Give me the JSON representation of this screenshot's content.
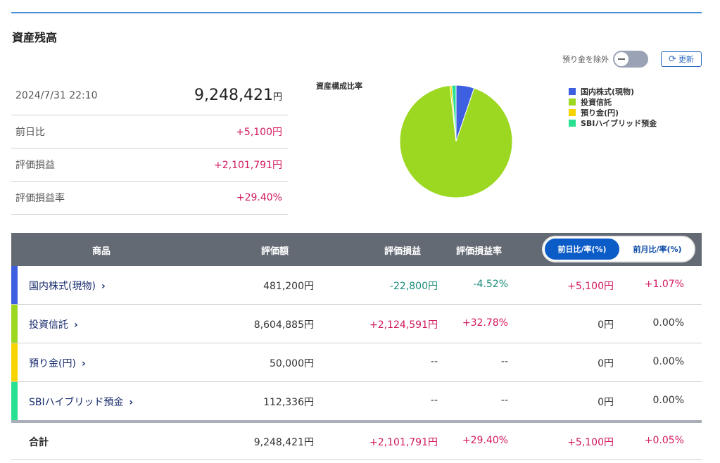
{
  "section_title": "資産残高",
  "controls": {
    "exclude_deposit_label": "預り金を除外",
    "refresh_label": "更新"
  },
  "summary": {
    "datetime": "2024/7/31 22:10",
    "total_amount": "9,248,421",
    "total_unit": "円",
    "rows": [
      {
        "label": "前日比",
        "value": "+5,100円"
      },
      {
        "label": "評価損益",
        "value": "+2,101,791円"
      },
      {
        "label": "評価損益率",
        "value": "+29.40%"
      }
    ]
  },
  "chart_data": {
    "type": "pie",
    "title": "資産構成比率",
    "categories": [
      "国内株式(現物)",
      "投資信託",
      "預り金(円)",
      "SBIハイブリッド預金"
    ],
    "values": [
      481200,
      8604885,
      50000,
      112336
    ],
    "colors": [
      "#3e5fe0",
      "#9cd722",
      "#f7d400",
      "#28e08f"
    ],
    "legend_position": "right"
  },
  "table": {
    "headers": {
      "product": "商品",
      "amount": "評価額",
      "pl": "評価損益",
      "pl_rate": "評価損益率"
    },
    "period_tabs": {
      "day": "前日比/率(%)",
      "month": "前月比/率(%)"
    },
    "rows": [
      {
        "name": "国内株式(現物)",
        "color": "#3e5fe0",
        "amount": "481,200円",
        "pl": "-22,800円",
        "pl_rate": "-4.52%",
        "day": "+5,100円",
        "month": "+1.07%"
      },
      {
        "name": "投資信託",
        "color": "#9cd722",
        "amount": "8,604,885円",
        "pl": "+2,124,591円",
        "pl_rate": "+32.78%",
        "day": "0円",
        "month": "0.00%"
      },
      {
        "name": "預り金(円)",
        "color": "#f7d400",
        "amount": "50,000円",
        "pl": "--",
        "pl_rate": "--",
        "day": "0円",
        "month": "0.00%"
      },
      {
        "name": "SBIハイブリッド預金",
        "color": "#28e08f",
        "amount": "112,336円",
        "pl": "--",
        "pl_rate": "--",
        "day": "0円",
        "month": "0.00%"
      }
    ],
    "total": {
      "label": "合計",
      "amount": "9,248,421円",
      "pl": "+2,101,791円",
      "pl_rate": "+29.40%",
      "day": "+5,100円",
      "month": "+0.05%"
    }
  },
  "colors": {
    "positive": "#d1195f",
    "negative": "#1a8c7a",
    "accent": "#0b5cc7"
  }
}
